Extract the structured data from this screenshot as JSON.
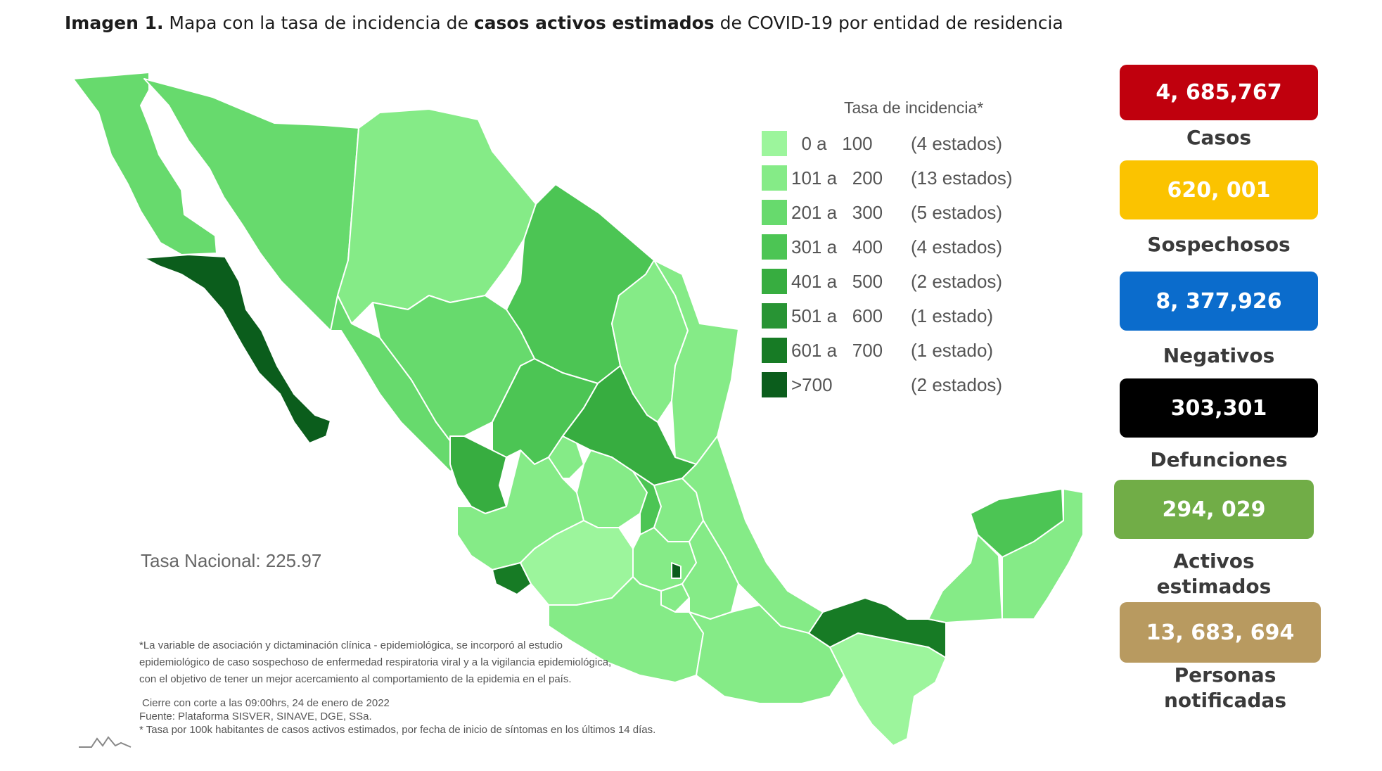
{
  "title": {
    "prefix": "Imagen 1.",
    "part1": " Mapa con la tasa de incidencia de ",
    "bold": "casos activos estimados",
    "part2": " de COVID-19 por entidad de residencia"
  },
  "legend": {
    "title": "Tasa de incidencia*",
    "items": [
      {
        "range": "  0 a   100",
        "count": "(4 estados)",
        "color": "#9cf59c"
      },
      {
        "range": "101 a   200",
        "count": "(13 estados)",
        "color": "#85eb87"
      },
      {
        "range": "201 a   300",
        "count": "(5 estados)",
        "color": "#67da6d"
      },
      {
        "range": "301 a   400",
        "count": "(4 estados)",
        "color": "#4cc554"
      },
      {
        "range": "401 a   500",
        "count": "(2 estados)",
        "color": "#37ad40"
      },
      {
        "range": "501 a   600",
        "count": "(1 estado)",
        "color": "#289434"
      },
      {
        "range": "601 a   700",
        "count": "(1 estado)",
        "color": "#177b25"
      },
      {
        "range": ">700",
        "count": "(2 estados)",
        "color": "#0b5d1c"
      }
    ]
  },
  "tasa_nacional": "Tasa Nacional: 225.97",
  "footnotes": {
    "line1": "*La variable de asociación y dictaminación clínica - epidemiológica, se incorporó al estudio",
    "line2": "epidemiológico de caso sospechoso de enfermedad respiratoria viral y a la vigilancia epidemiológica,",
    "line3": "con el objetivo de tener un mejor acercamiento al comportamiento de la epidemia en el país.",
    "line4": "Cierre con corte a las 09:00hrs, 24 de enero de 2022",
    "line5": "Fuente: Plataforma SISVER, SINAVE, DGE, SSa.",
    "line6": "* Tasa por 100k habitantes de casos activos estimados, por fecha de inicio de síntomas en los últimos 14 días."
  },
  "stats": [
    {
      "value": "4, 685,767",
      "label": "Casos",
      "color": "#c0000d"
    },
    {
      "value": "620, 001",
      "label": "Sospechosos",
      "color": "#fbc300"
    },
    {
      "value": "8, 377,926",
      "label": "Negativos",
      "color": "#0b6ccc"
    },
    {
      "value": "303,301",
      "label": "Defunciones",
      "color": "#000000"
    },
    {
      "value": "294, 029",
      "label_line1": "Activos",
      "label_line2": "estimados",
      "color": "#71ad47"
    },
    {
      "value": "13, 683, 694",
      "label_line1": "Personas",
      "label_line2": "notificadas",
      "color": "#b89a60"
    }
  ]
}
